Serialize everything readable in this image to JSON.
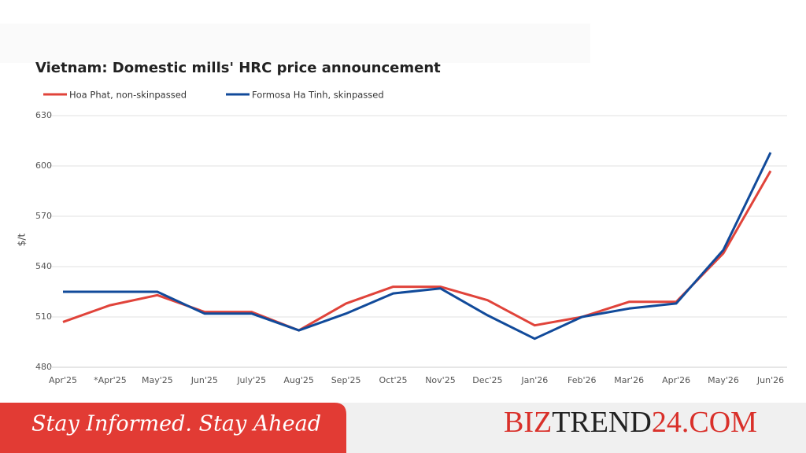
{
  "chart_data": {
    "type": "line",
    "title": "Vietnam: Domestic mills' HRC price announcement",
    "y_label": "$/t",
    "categories": [
      "Apr'25",
      "*Apr'25",
      "May'25",
      "Jun'25",
      "July'25",
      "Aug'25",
      "Sep'25",
      "Oct'25",
      "Nov'25",
      "Dec'25",
      "Jan'26",
      "Feb'26",
      "Mar'26",
      "Apr'26",
      "May'26",
      "Jun'26"
    ],
    "series": [
      {
        "name": "Hoa Phat, non-skinpassed",
        "color": "#e0433a",
        "values": [
          507,
          517,
          523,
          513,
          513,
          502,
          518,
          528,
          528,
          520,
          505,
          510,
          519,
          519,
          548,
          597
        ]
      },
      {
        "name": "Formosa Ha Tinh, skinpassed",
        "color": "#114a9a",
        "values": [
          525,
          525,
          525,
          512,
          512,
          502,
          512,
          524,
          527,
          511,
          497,
          510,
          515,
          518,
          550,
          608
        ]
      }
    ],
    "ylim": [
      480,
      630
    ],
    "yticks": [
      480,
      510,
      540,
      570,
      600,
      630
    ],
    "grid": true,
    "legend": "top-left"
  },
  "footer": {
    "slogan": "Stay Informed. Stay Ahead",
    "brand": [
      "BIZ",
      "TREND",
      "24",
      ".COM"
    ]
  }
}
